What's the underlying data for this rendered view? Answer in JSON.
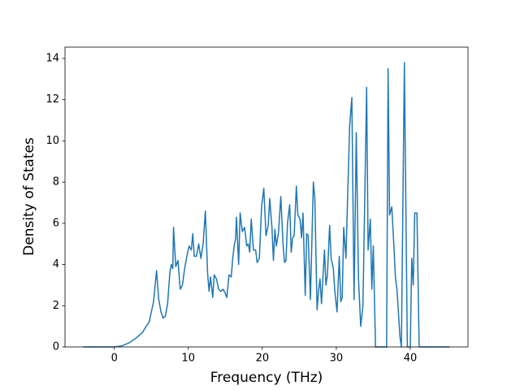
{
  "chart_data": {
    "type": "line",
    "xlabel": "Frequency (THz)",
    "ylabel": "Density of States",
    "x": [
      -4.2,
      0,
      1,
      2,
      3,
      3.8,
      4.3,
      4.7,
      5.0,
      5.3,
      5.7,
      6.0,
      6.3,
      6.6,
      6.9,
      7.2,
      7.5,
      7.7,
      7.9,
      8.0,
      8.3,
      8.6,
      8.9,
      9.2,
      9.5,
      9.8,
      10.1,
      10.4,
      10.6,
      10.8,
      11.1,
      11.4,
      11.7,
      12.0,
      12.3,
      12.6,
      12.8,
      13.0,
      13.3,
      13.5,
      13.8,
      14.1,
      14.4,
      14.7,
      15.0,
      15.2,
      15.5,
      15.8,
      16.0,
      16.2,
      16.4,
      16.5,
      16.8,
      17.0,
      17.3,
      17.6,
      17.9,
      18.1,
      18.3,
      18.5,
      18.8,
      19.1,
      19.3,
      19.6,
      19.9,
      20.2,
      20.5,
      20.8,
      21.0,
      21.3,
      21.5,
      21.7,
      21.9,
      22.2,
      22.5,
      22.8,
      23.0,
      23.2,
      23.4,
      23.7,
      23.9,
      24.1,
      24.3,
      24.6,
      24.8,
      25.1,
      25.3,
      25.5,
      25.8,
      26.0,
      26.2,
      26.5,
      26.9,
      27.1,
      27.4,
      27.6,
      27.8,
      28.0,
      28.4,
      28.6,
      28.8,
      29.1,
      29.3,
      29.6,
      29.8,
      30.1,
      30.4,
      30.6,
      30.8,
      31.0,
      31.3,
      31.8,
      32.1,
      32.4,
      32.7,
      33.0,
      33.3,
      33.6,
      34.1,
      34.3,
      34.6,
      34.8,
      35.0,
      35.3,
      36.8,
      37.0,
      37.2,
      37.5,
      37.8,
      38.0,
      38.2,
      38.6,
      38.8,
      39.2,
      39.6,
      40.0,
      40.2,
      40.4,
      40.6,
      40.9,
      41.2,
      45.3
    ],
    "values": [
      0,
      0,
      0.05,
      0.2,
      0.45,
      0.7,
      1.0,
      1.2,
      1.7,
      2.2,
      3.7,
      2.3,
      1.7,
      1.4,
      1.5,
      2.1,
      3.6,
      4.0,
      3.8,
      5.8,
      3.9,
      4.2,
      2.8,
      3.0,
      3.8,
      4.4,
      4.9,
      4.7,
      5.5,
      4.4,
      4.4,
      5.0,
      4.3,
      5.0,
      6.6,
      3.6,
      2.7,
      3.4,
      2.4,
      3.5,
      3.3,
      2.8,
      2.7,
      2.8,
      2.6,
      2.4,
      3.5,
      3.4,
      4.3,
      4.9,
      5.3,
      6.3,
      4.0,
      6.5,
      5.6,
      5.8,
      4.9,
      5.0,
      4.6,
      6.2,
      4.7,
      4.7,
      4.1,
      4.3,
      6.8,
      7.7,
      5.4,
      5.9,
      7.2,
      5.8,
      4.2,
      5.7,
      4.9,
      5.6,
      7.3,
      5.0,
      4.1,
      4.2,
      6.0,
      6.9,
      4.6,
      5.3,
      5.4,
      7.8,
      6.4,
      6.2,
      5.3,
      6.5,
      2.5,
      5.5,
      5.4,
      2.3,
      8.0,
      7.2,
      1.8,
      2.7,
      3.3,
      2.1,
      4.7,
      3.0,
      3.5,
      5.9,
      4.3,
      3.8,
      2.7,
      1.7,
      4.4,
      2.2,
      2.4,
      5.8,
      4.3,
      10.7,
      12.1,
      2.3,
      10.4,
      3.3,
      1.0,
      2.0,
      12.6,
      4.7,
      6.2,
      2.8,
      4.9,
      0,
      0,
      13.5,
      6.4,
      6.8,
      4.8,
      3.3,
      2.8,
      0.5,
      0,
      13.8,
      0,
      0,
      4.3,
      3.0,
      6.5,
      6.5,
      0,
      0
    ],
    "color": "#1f77b4",
    "xlim": [
      -6.67,
      47.8
    ],
    "xticks": [
      0,
      10,
      20,
      30,
      40
    ],
    "ylim": [
      0,
      14.55
    ],
    "yticks": [
      0,
      2,
      4,
      6,
      8,
      10,
      12,
      14
    ]
  }
}
